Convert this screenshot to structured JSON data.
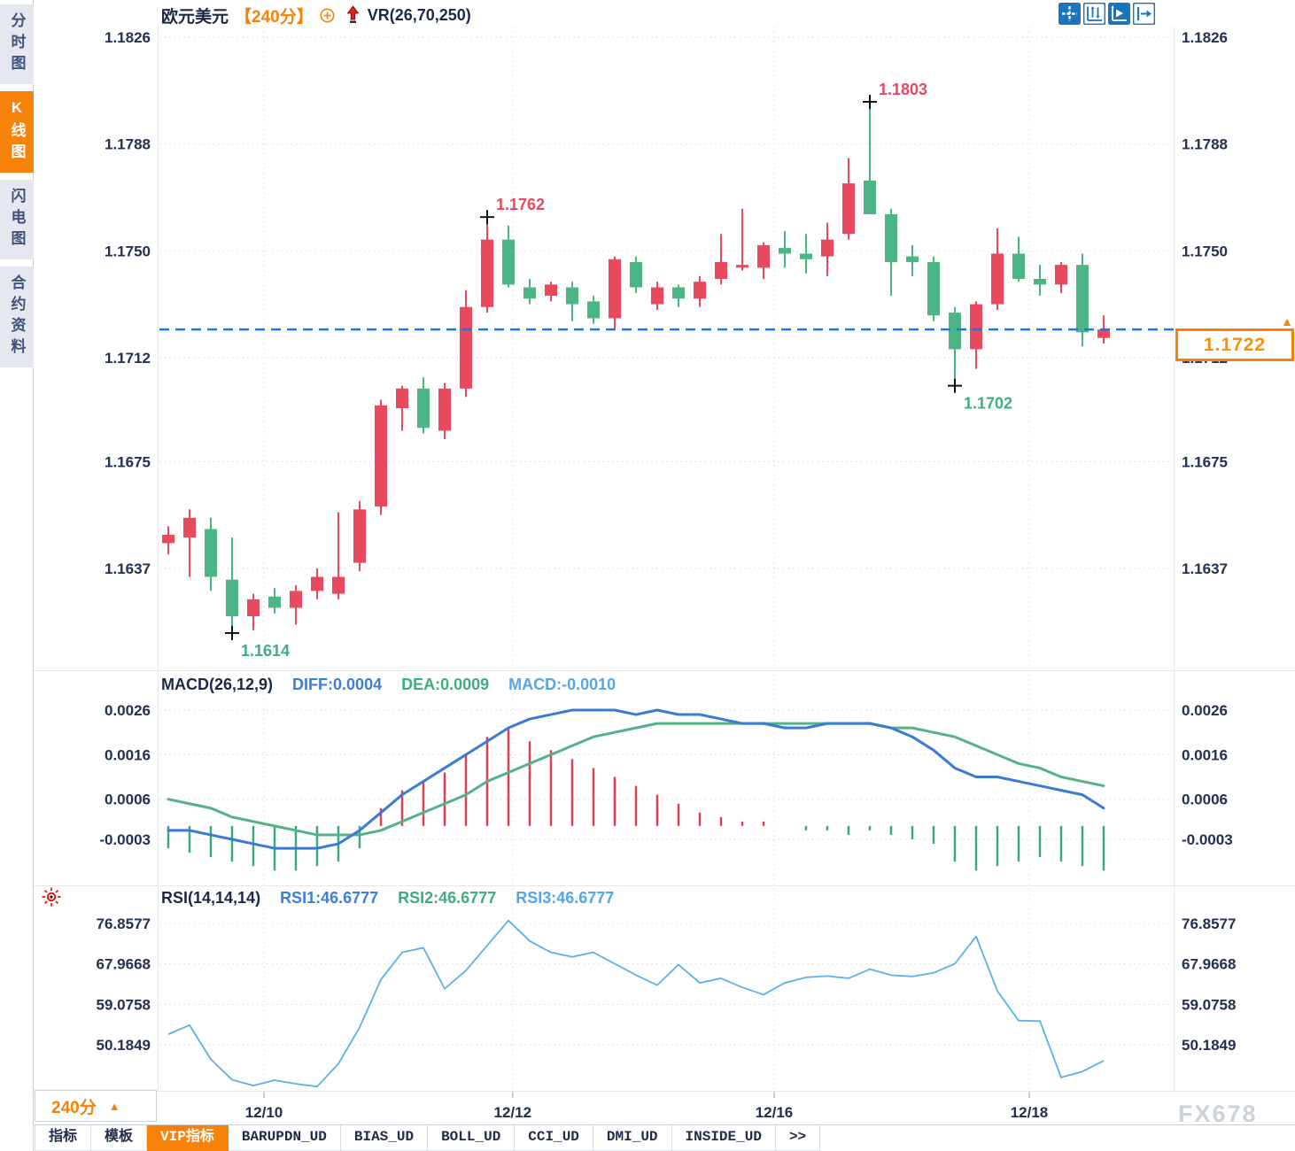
{
  "header": {
    "symbol": "欧元美元",
    "period": "【240分】",
    "indicator": "VR(26,70,250)"
  },
  "icons": {
    "crosshair-tool": "✛",
    "axis-range-tool": "⇅",
    "auto-fit-tool": "▶",
    "collapse-panel-tool": "⇥",
    "zoom-add": "⊕",
    "signal-arrow": "↑",
    "alert-sun": "☀",
    "dropdown-arrow": "▲"
  },
  "sidebar": {
    "items": [
      {
        "label": "分时图",
        "active": false
      },
      {
        "label": "K线图",
        "active": true
      },
      {
        "label": "闪电图",
        "active": false
      },
      {
        "label": "合约资料",
        "active": false
      }
    ]
  },
  "price_box": {
    "value": "1.1722"
  },
  "macd_header": {
    "title": "MACD(26,12,9)",
    "diff": "DIFF:0.0004",
    "dea": "DEA:0.0009",
    "macd": "MACD:-0.0010"
  },
  "rsi_header": {
    "title": "RSI(14,14,14)",
    "rsi1": "RSI1:46.6777",
    "rsi2": "RSI2:46.6777",
    "rsi3": "RSI3:46.6777"
  },
  "bottom": {
    "period_selector": "240分",
    "tabs": [
      "指标",
      "模板",
      "VIP指标",
      "BARUPDN_UD",
      "BIAS_UD",
      "BOLL_UD",
      "CCI_UD",
      "DMI_UD",
      "INSIDE_UD",
      ">>"
    ],
    "active_tab": "VIP指标",
    "watermark": "FX678"
  },
  "colors": {
    "up": "#e8495f",
    "down": "#4cb584",
    "hist_up": "#d84453",
    "hist_down": "#3fa87c",
    "accent_orange": "#f8810a",
    "price_line_blue": "#1779e8",
    "diff_blue": "#3a7bd4",
    "dea_green": "#55b287",
    "rsi_blue": "#59b1e8",
    "label_dark": "#23304f",
    "grid": "#d9dde5",
    "ann_red": "#e8495f",
    "ann_green": "#3fae7e"
  },
  "chart_data": [
    {
      "type": "candlestick",
      "pane": "price",
      "title": "欧元美元 240分 K线",
      "y_ticks": [
        "1.1826",
        "1.1788",
        "1.1750",
        "1.1712",
        "1.1675",
        "1.1637"
      ],
      "y_range": {
        "top": 1.1832,
        "bottom": 1.16
      },
      "x_ticks": [
        {
          "label": "12/10",
          "bar": 4.5
        },
        {
          "label": "12/12",
          "bar": 16.2
        },
        {
          "label": "12/16",
          "bar": 28.5
        },
        {
          "label": "12/18",
          "bar": 40.5
        }
      ],
      "current_price": 1.1722,
      "candles_ohlc": [
        [
          1.1646,
          1.1652,
          1.1642,
          1.1649
        ],
        [
          1.1648,
          1.1658,
          1.1634,
          1.1655
        ],
        [
          1.1651,
          1.1655,
          1.1629,
          1.1634
        ],
        [
          1.1633,
          1.1648,
          1.1614,
          1.162
        ],
        [
          1.162,
          1.1628,
          1.1615,
          1.1626
        ],
        [
          1.1627,
          1.163,
          1.1621,
          1.1623
        ],
        [
          1.1623,
          1.1631,
          1.1617,
          1.1629
        ],
        [
          1.1629,
          1.1637,
          1.1626,
          1.1634
        ],
        [
          1.1628,
          1.1657,
          1.1626,
          1.1634
        ],
        [
          1.1639,
          1.1661,
          1.1636,
          1.1658
        ],
        [
          1.1659,
          1.1697,
          1.1656,
          1.1695
        ],
        [
          1.1694,
          1.1702,
          1.1686,
          1.1701
        ],
        [
          1.1701,
          1.1705,
          1.1685,
          1.1687
        ],
        [
          1.1686,
          1.1703,
          1.1683,
          1.1701
        ],
        [
          1.1701,
          1.1736,
          1.1698,
          1.173
        ],
        [
          1.173,
          1.1762,
          1.1728,
          1.1754
        ],
        [
          1.1754,
          1.1759,
          1.1737,
          1.1738
        ],
        [
          1.1737,
          1.174,
          1.1731,
          1.1733
        ],
        [
          1.1734,
          1.1739,
          1.1732,
          1.1738
        ],
        [
          1.1737,
          1.1739,
          1.1725,
          1.1731
        ],
        [
          1.1732,
          1.1734,
          1.1724,
          1.1726
        ],
        [
          1.1726,
          1.1748,
          1.1722,
          1.1747
        ],
        [
          1.1746,
          1.1748,
          1.1735,
          1.1737
        ],
        [
          1.1731,
          1.1739,
          1.1729,
          1.1737
        ],
        [
          1.1737,
          1.1738,
          1.173,
          1.1733
        ],
        [
          1.1733,
          1.1741,
          1.173,
          1.1739
        ],
        [
          1.174,
          1.1756,
          1.1738,
          1.1746
        ],
        [
          1.1744,
          1.1765,
          1.1743,
          1.1745
        ],
        [
          1.1744,
          1.1753,
          1.174,
          1.1752
        ],
        [
          1.1751,
          1.1757,
          1.1744,
          1.1749
        ],
        [
          1.1749,
          1.1756,
          1.1742,
          1.1747
        ],
        [
          1.1748,
          1.176,
          1.1741,
          1.1754
        ],
        [
          1.1756,
          1.1783,
          1.1754,
          1.1774
        ],
        [
          1.1775,
          1.1803,
          1.1763,
          1.1763
        ],
        [
          1.1763,
          1.1765,
          1.1734,
          1.1746
        ],
        [
          1.1748,
          1.1752,
          1.1741,
          1.1746
        ],
        [
          1.1746,
          1.1748,
          1.1725,
          1.1727
        ],
        [
          1.1728,
          1.173,
          1.1702,
          1.1715
        ],
        [
          1.1715,
          1.1732,
          1.1708,
          1.1731
        ],
        [
          1.1731,
          1.1758,
          1.1729,
          1.1749
        ],
        [
          1.1749,
          1.1755,
          1.1739,
          1.174
        ],
        [
          1.174,
          1.1745,
          1.1734,
          1.1738
        ],
        [
          1.1738,
          1.1746,
          1.1735,
          1.1745
        ],
        [
          1.1745,
          1.1749,
          1.1716,
          1.1721
        ],
        [
          1.1719,
          1.1727,
          1.1717,
          1.1722
        ]
      ],
      "annotations": [
        {
          "text": "1.1762",
          "bar": 15,
          "price": 1.1762,
          "placement": "above",
          "color": "#e8495f"
        },
        {
          "text": "1.1803",
          "bar": 33,
          "price": 1.1803,
          "placement": "above",
          "color": "#e8495f"
        },
        {
          "text": "1.1614",
          "bar": 3,
          "price": 1.1614,
          "placement": "below",
          "color": "#3fae7e"
        },
        {
          "text": "1.1702",
          "bar": 37,
          "price": 1.1702,
          "placement": "below",
          "color": "#3fae7e"
        }
      ]
    },
    {
      "type": "bar",
      "pane": "macd",
      "title": "MACD(26,12,9)",
      "y_ticks": [
        "0.0026",
        "0.0016",
        "0.0006",
        "-0.0003"
      ],
      "hist": [
        -0.0005,
        -0.0006,
        -0.0007,
        -0.0008,
        -0.0009,
        -0.001,
        -0.001,
        -0.0009,
        -0.0008,
        -0.0005,
        0.0004,
        0.0008,
        0.001,
        0.0012,
        0.0016,
        0.002,
        0.0022,
        0.0019,
        0.0017,
        0.0015,
        0.0013,
        0.0011,
        0.0009,
        0.0007,
        0.0005,
        0.0003,
        0.0002,
        0.0001,
        0.0001,
        0.0,
        -0.0001,
        -0.0001,
        -0.0002,
        -0.0001,
        -0.0002,
        -0.0003,
        -0.0004,
        -0.0008,
        -0.001,
        -0.0009,
        -0.0008,
        -0.0007,
        -0.0008,
        -0.0009,
        -0.001
      ],
      "series": [
        {
          "name": "DIFF",
          "values": [
            -0.0001,
            -0.0001,
            -0.0002,
            -0.0003,
            -0.0004,
            -0.0005,
            -0.0005,
            -0.0005,
            -0.0004,
            -0.0001,
            0.0003,
            0.0007,
            0.001,
            0.0013,
            0.0016,
            0.0019,
            0.0022,
            0.0024,
            0.0025,
            0.0026,
            0.0026,
            0.0026,
            0.0025,
            0.0026,
            0.0025,
            0.0025,
            0.0024,
            0.0023,
            0.0023,
            0.0022,
            0.0022,
            0.0023,
            0.0023,
            0.0023,
            0.0022,
            0.002,
            0.0017,
            0.0013,
            0.0011,
            0.0011,
            0.001,
            0.0009,
            0.0008,
            0.0007,
            0.0004
          ]
        },
        {
          "name": "DEA",
          "values": [
            0.0006,
            0.0005,
            0.0004,
            0.0002,
            0.0001,
            0.0,
            -0.0001,
            -0.0002,
            -0.0002,
            -0.0002,
            -0.0001,
            0.0001,
            0.0003,
            0.0005,
            0.0007,
            0.001,
            0.0012,
            0.0014,
            0.0016,
            0.0018,
            0.002,
            0.0021,
            0.0022,
            0.0023,
            0.0023,
            0.0023,
            0.0023,
            0.0023,
            0.0023,
            0.0023,
            0.0023,
            0.0023,
            0.0023,
            0.0023,
            0.0022,
            0.0022,
            0.0021,
            0.002,
            0.0018,
            0.0016,
            0.0014,
            0.0013,
            0.0011,
            0.001,
            0.0009
          ]
        }
      ]
    },
    {
      "type": "line",
      "pane": "rsi",
      "title": "RSI(14,14,14)",
      "y_ticks": [
        "76.8577",
        "67.9668",
        "59.0758",
        "50.1849"
      ],
      "series": [
        {
          "name": "RSI1",
          "values": [
            52.5,
            54.5,
            47.0,
            42.5,
            41.2,
            42.4,
            41.6,
            41.0,
            46.0,
            54.0,
            64.5,
            70.5,
            71.5,
            62.5,
            66.5,
            72.0,
            77.5,
            73.0,
            70.5,
            69.5,
            70.5,
            68.0,
            65.5,
            63.3,
            67.8,
            63.8,
            64.8,
            62.8,
            61.2,
            63.8,
            65.0,
            65.3,
            64.8,
            66.8,
            65.5,
            65.2,
            66.0,
            68.0,
            74.0,
            62.0,
            55.5,
            55.4,
            43.0,
            44.3,
            46.6777
          ]
        }
      ]
    }
  ]
}
